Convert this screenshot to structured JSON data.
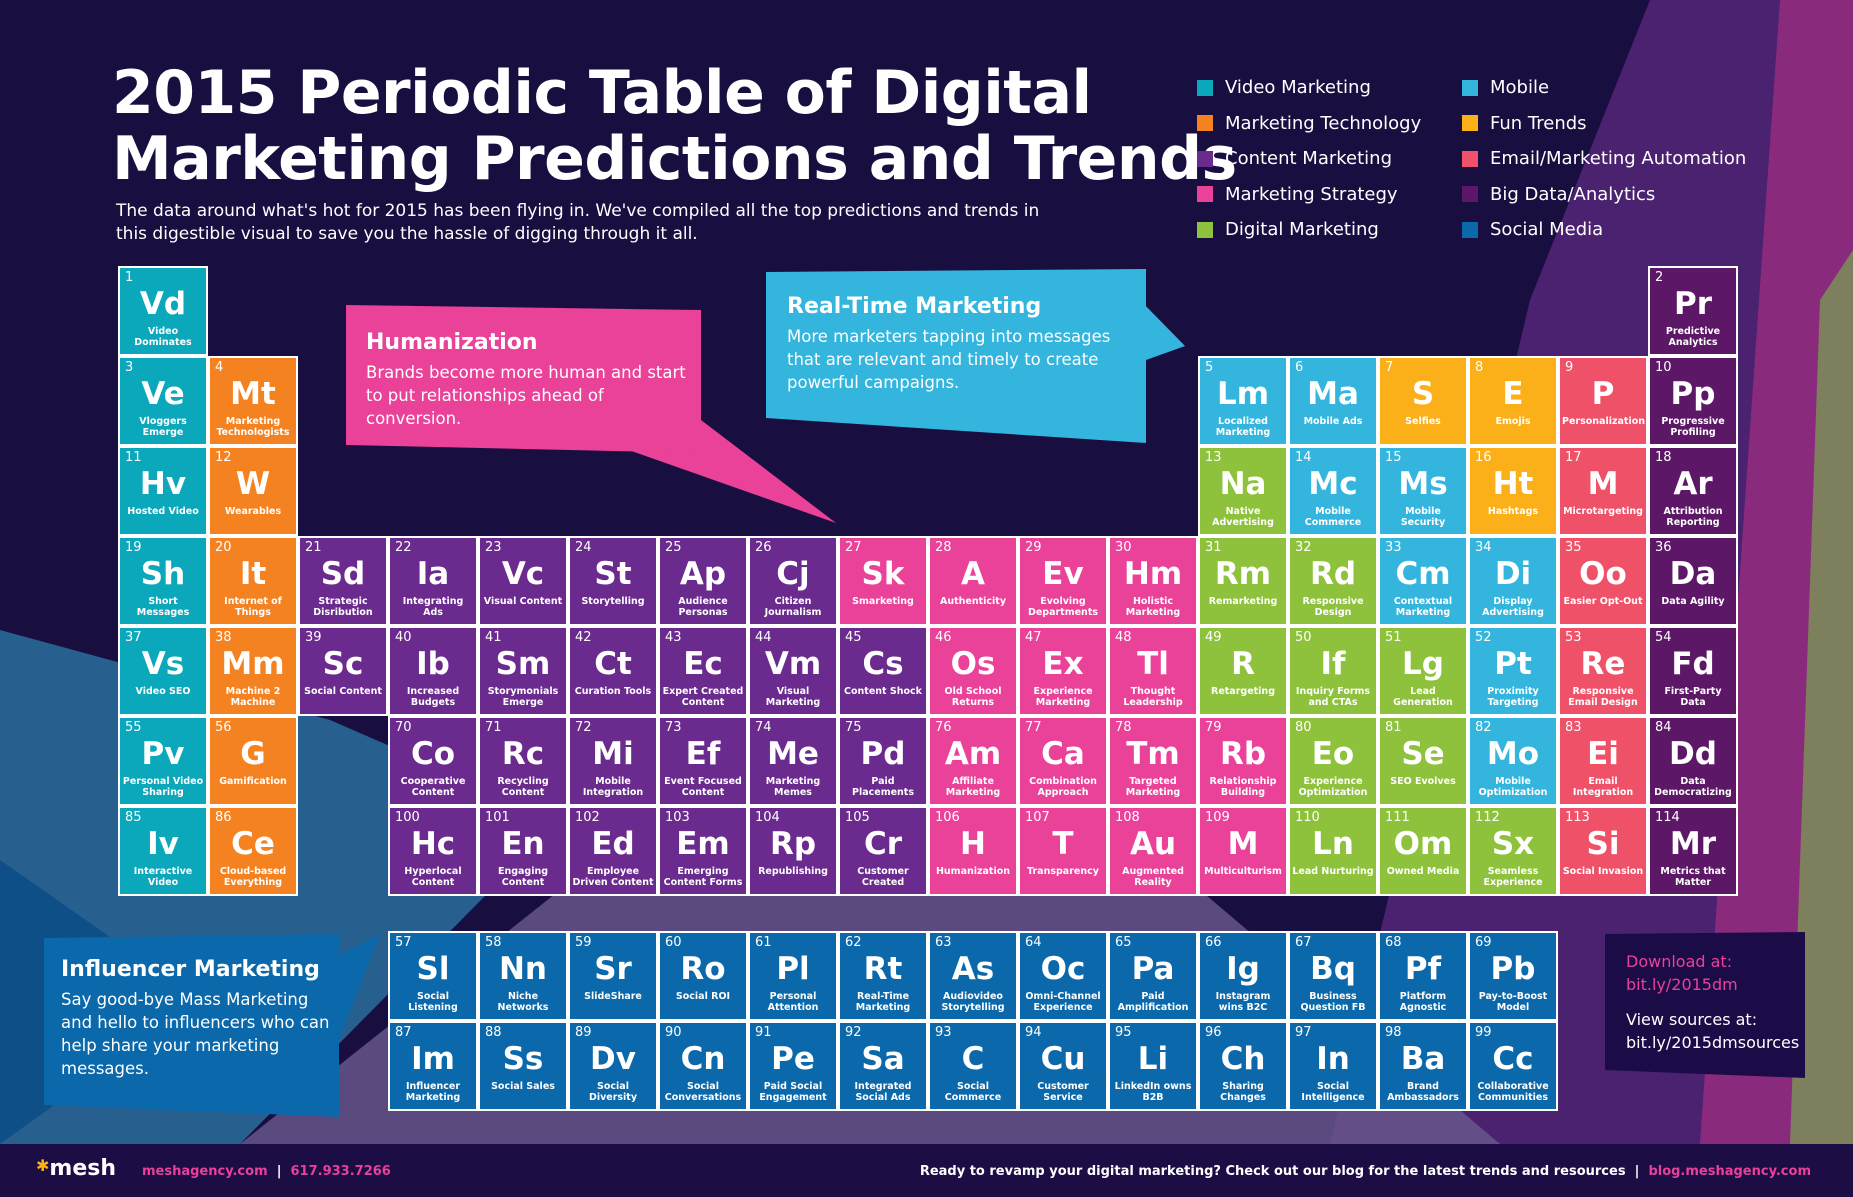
{
  "header": {
    "title_line1": "2015 Periodic Table of Digital",
    "title_line2": "Marketing Predictions and Trends",
    "subtitle": "The data around what's hot for 2015 has been flying in. We've compiled all the top predictions and trends in this digestible visual to save you the hassle of digging through it all."
  },
  "categories": {
    "video": {
      "label": "Video Marketing",
      "color": "#0ba7ba"
    },
    "mtech": {
      "label": "Marketing Technology",
      "color": "#f58220"
    },
    "content": {
      "label": "Content Marketing",
      "color": "#6b2a8e"
    },
    "strategy": {
      "label": "Marketing Strategy",
      "color": "#ea4199"
    },
    "digital": {
      "label": "Digital Marketing",
      "color": "#8fc23c"
    },
    "mobile": {
      "label": "Mobile",
      "color": "#33b5de"
    },
    "fun": {
      "label": "Fun Trends",
      "color": "#fbaf19"
    },
    "email": {
      "label": "Email/Marketing Automation",
      "color": "#ef5168"
    },
    "bigdata": {
      "label": "Big Data/Analytics",
      "color": "#5c1766"
    },
    "social": {
      "label": "Social Media",
      "color": "#0b68aa"
    }
  },
  "legend_order": [
    [
      "video",
      "mtech",
      "content",
      "strategy",
      "digital"
    ],
    [
      "mobile",
      "fun",
      "email",
      "bigdata",
      "social"
    ]
  ],
  "main_table": [
    [
      [
        "1",
        "Vd",
        "Video Dominates",
        "video"
      ],
      null,
      null,
      null,
      null,
      null,
      null,
      null,
      null,
      null,
      null,
      null,
      null,
      null,
      null,
      null,
      null,
      [
        "2",
        "Pr",
        "Predictive Analytics",
        "bigdata"
      ]
    ],
    [
      [
        "3",
        "Ve",
        "Vloggers Emerge",
        "video"
      ],
      [
        "4",
        "Mt",
        "Marketing Technologists",
        "mtech"
      ],
      null,
      null,
      null,
      null,
      null,
      null,
      null,
      null,
      null,
      null,
      [
        "5",
        "Lm",
        "Localized Marketing",
        "mobile"
      ],
      [
        "6",
        "Ma",
        "Mobile Ads",
        "mobile"
      ],
      [
        "7",
        "S",
        "Selfies",
        "fun"
      ],
      [
        "8",
        "E",
        "Emojis",
        "fun"
      ],
      [
        "9",
        "P",
        "Personalization",
        "email"
      ],
      [
        "10",
        "Pp",
        "Progressive Profiling",
        "bigdata"
      ]
    ],
    [
      [
        "11",
        "Hv",
        "Hosted Video",
        "video"
      ],
      [
        "12",
        "W",
        "Wearables",
        "mtech"
      ],
      null,
      null,
      null,
      null,
      null,
      null,
      null,
      null,
      null,
      null,
      [
        "13",
        "Na",
        "Native Advertising",
        "digital"
      ],
      [
        "14",
        "Mc",
        "Mobile Commerce",
        "mobile"
      ],
      [
        "15",
        "Ms",
        "Mobile Security",
        "mobile"
      ],
      [
        "16",
        "Ht",
        "Hashtags",
        "fun"
      ],
      [
        "17",
        "M",
        "Microtargeting",
        "email"
      ],
      [
        "18",
        "Ar",
        "Attribution Reporting",
        "bigdata"
      ]
    ],
    [
      [
        "19",
        "Sh",
        "Short Messages",
        "video"
      ],
      [
        "20",
        "It",
        "Internet of Things",
        "mtech"
      ],
      [
        "21",
        "Sd",
        "Strategic Disribution",
        "content"
      ],
      [
        "22",
        "Ia",
        "Integrating Ads",
        "content"
      ],
      [
        "23",
        "Vc",
        "Visual Content",
        "content"
      ],
      [
        "24",
        "St",
        "Storytelling",
        "content"
      ],
      [
        "25",
        "Ap",
        "Audience Personas",
        "content"
      ],
      [
        "26",
        "Cj",
        "Citizen Journalism",
        "content"
      ],
      [
        "27",
        "Sk",
        "Smarketing",
        "strategy"
      ],
      [
        "28",
        "A",
        "Authenticity",
        "strategy"
      ],
      [
        "29",
        "Ev",
        "Evolving Departments",
        "strategy"
      ],
      [
        "30",
        "Hm",
        "Holistic Marketing",
        "strategy"
      ],
      [
        "31",
        "Rm",
        "Remarketing",
        "digital"
      ],
      [
        "32",
        "Rd",
        "Responsive Design",
        "digital"
      ],
      [
        "33",
        "Cm",
        "Contextual Marketing",
        "mobile"
      ],
      [
        "34",
        "Di",
        "Display Advertising",
        "mobile"
      ],
      [
        "35",
        "Oo",
        "Easier Opt-Out",
        "email"
      ],
      [
        "36",
        "Da",
        "Data Agility",
        "bigdata"
      ]
    ],
    [
      [
        "37",
        "Vs",
        "Video SEO",
        "video"
      ],
      [
        "38",
        "Mm",
        "Machine 2 Machine",
        "mtech"
      ],
      [
        "39",
        "Sc",
        "Social Content",
        "content"
      ],
      [
        "40",
        "Ib",
        "Increased Budgets",
        "content"
      ],
      [
        "41",
        "Sm",
        "Storymonials Emerge",
        "content"
      ],
      [
        "42",
        "Ct",
        "Curation Tools",
        "content"
      ],
      [
        "43",
        "Ec",
        "Expert Created Content",
        "content"
      ],
      [
        "44",
        "Vm",
        "Visual Marketing",
        "content"
      ],
      [
        "45",
        "Cs",
        "Content Shock",
        "content"
      ],
      [
        "46",
        "Os",
        "Old School Returns",
        "strategy"
      ],
      [
        "47",
        "Ex",
        "Experience Marketing",
        "strategy"
      ],
      [
        "48",
        "Tl",
        "Thought Leadership",
        "strategy"
      ],
      [
        "49",
        "R",
        "Retargeting",
        "digital"
      ],
      [
        "50",
        "If",
        "Inquiry Forms and CTAs",
        "digital"
      ],
      [
        "51",
        "Lg",
        "Lead Generation",
        "digital"
      ],
      [
        "52",
        "Pt",
        "Proximity Targeting",
        "mobile"
      ],
      [
        "53",
        "Re",
        "Responsive Email Design",
        "email"
      ],
      [
        "54",
        "Fd",
        "First-Party Data",
        "bigdata"
      ]
    ],
    [
      [
        "55",
        "Pv",
        "Personal Video Sharing",
        "video"
      ],
      [
        "56",
        "G",
        "Gamification",
        "mtech"
      ],
      null,
      [
        "70",
        "Co",
        "Cooperative Content",
        "content"
      ],
      [
        "71",
        "Rc",
        "Recycling Content",
        "content"
      ],
      [
        "72",
        "Mi",
        "Mobile Integration",
        "content"
      ],
      [
        "73",
        "Ef",
        "Event Focused Content",
        "content"
      ],
      [
        "74",
        "Me",
        "Marketing Memes",
        "content"
      ],
      [
        "75",
        "Pd",
        "Paid Placements",
        "content"
      ],
      [
        "76",
        "Am",
        "Affiliate Marketing",
        "strategy"
      ],
      [
        "77",
        "Ca",
        "Combination Approach",
        "strategy"
      ],
      [
        "78",
        "Tm",
        "Targeted Marketing",
        "strategy"
      ],
      [
        "79",
        "Rb",
        "Relationship Building",
        "strategy"
      ],
      [
        "80",
        "Eo",
        "Experience Optimization",
        "digital"
      ],
      [
        "81",
        "Se",
        "SEO Evolves",
        "digital"
      ],
      [
        "82",
        "Mo",
        "Mobile Optimization",
        "mobile"
      ],
      [
        "83",
        "Ei",
        "Email Integration",
        "email"
      ],
      [
        "84",
        "Dd",
        "Data Democratizing",
        "bigdata"
      ]
    ],
    [
      [
        "85",
        "Iv",
        "Interactive Video",
        "video"
      ],
      [
        "86",
        "Ce",
        "Cloud-based Everything",
        "mtech"
      ],
      null,
      [
        "100",
        "Hc",
        "Hyperlocal Content",
        "content"
      ],
      [
        "101",
        "En",
        "Engaging Content",
        "content"
      ],
      [
        "102",
        "Ed",
        "Employee Driven Content",
        "content"
      ],
      [
        "103",
        "Em",
        "Emerging Content Forms",
        "content"
      ],
      [
        "104",
        "Rp",
        "Republishing",
        "content"
      ],
      [
        "105",
        "Cr",
        "Customer Created",
        "content"
      ],
      [
        "106",
        "H",
        "Humanization",
        "strategy"
      ],
      [
        "107",
        "T",
        "Transparency",
        "strategy"
      ],
      [
        "108",
        "Au",
        "Augmented Reality",
        "strategy"
      ],
      [
        "109",
        "M",
        "Multiculturism",
        "strategy"
      ],
      [
        "110",
        "Ln",
        "Lead Nurturing",
        "digital"
      ],
      [
        "111",
        "Om",
        "Owned Media",
        "digital"
      ],
      [
        "112",
        "Sx",
        "Seamless Experience",
        "digital"
      ],
      [
        "113",
        "Si",
        "Social Invasion",
        "email"
      ],
      [
        "114",
        "Mr",
        "Metrics that Matter",
        "bigdata"
      ]
    ]
  ],
  "social_table": [
    [
      [
        "57",
        "Sl",
        "Social Listening",
        "social"
      ],
      [
        "58",
        "Nn",
        "Niche Networks",
        "social"
      ],
      [
        "59",
        "Sr",
        "SlideShare",
        "social"
      ],
      [
        "60",
        "Ro",
        "Social ROI",
        "social"
      ],
      [
        "61",
        "Pl",
        "Personal Attention",
        "social"
      ],
      [
        "62",
        "Rt",
        "Real-Time Marketing",
        "social"
      ],
      [
        "63",
        "As",
        "Audiovideo Storytelling",
        "social"
      ],
      [
        "64",
        "Oc",
        "Omni-Channel Experience",
        "social"
      ],
      [
        "65",
        "Pa",
        "Paid Amplification",
        "social"
      ],
      [
        "66",
        "Ig",
        "Instagram wins B2C",
        "social"
      ],
      [
        "67",
        "Bq",
        "Business Question FB",
        "social"
      ],
      [
        "68",
        "Pf",
        "Platform Agnostic",
        "social"
      ],
      [
        "69",
        "Pb",
        "Pay-to-Boost Model",
        "social"
      ]
    ],
    [
      [
        "87",
        "Im",
        "Influencer Marketing",
        "social"
      ],
      [
        "88",
        "Ss",
        "Social Sales",
        "social"
      ],
      [
        "89",
        "Dv",
        "Social Diversity",
        "social"
      ],
      [
        "90",
        "Cn",
        "Social Conversations",
        "social"
      ],
      [
        "91",
        "Pe",
        "Paid Social Engagement",
        "social"
      ],
      [
        "92",
        "Sa",
        "Integrated Social Ads",
        "social"
      ],
      [
        "93",
        "C",
        "Social Commerce",
        "social"
      ],
      [
        "94",
        "Cu",
        "Customer Service",
        "social"
      ],
      [
        "95",
        "Li",
        "LinkedIn owns B2B",
        "social"
      ],
      [
        "96",
        "Ch",
        "Sharing Changes",
        "social"
      ],
      [
        "97",
        "In",
        "Social Intelligence",
        "social"
      ],
      [
        "98",
        "Ba",
        "Brand Ambassadors",
        "social"
      ],
      [
        "99",
        "Cc",
        "Collaborative Communities",
        "social"
      ]
    ]
  ],
  "callouts": {
    "humanization": {
      "title": "Humanization",
      "text": "Brands become more human and start to put relationships ahead of conversion.",
      "color": "#ea4199"
    },
    "realtime": {
      "title": "Real-Time Marketing",
      "text": "More marketers tapping into messages that are relevant and timely to create powerful campaigns.",
      "color": "#33b5de"
    },
    "influencer": {
      "title": "Influencer Marketing",
      "text": "Say good-bye Mass Marketing and hello to influencers who can help share your marketing messages.",
      "color": "#0b68aa"
    }
  },
  "download": {
    "label": "Download at:",
    "link": "bit.ly/2015dm",
    "sources_label": "View sources at:",
    "sources_link": "bit.ly/2015dmsources"
  },
  "footer": {
    "logo": "mesh",
    "website": "meshagency.com",
    "separator": "|",
    "phone": "617.933.7266",
    "cta": "Ready to revamp your digital marketing? Check out our blog for the latest trends and resources",
    "blog": "blog.meshagency.com"
  }
}
